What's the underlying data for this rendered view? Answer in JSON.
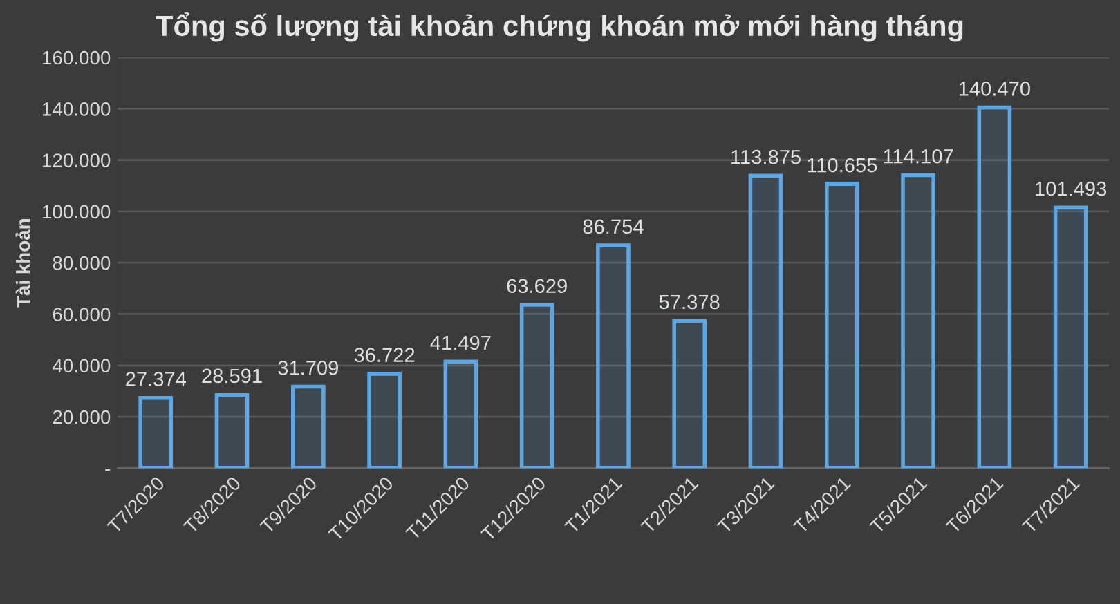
{
  "chart_data": {
    "type": "bar",
    "title": "Tổng số lượng tài khoản chứng khoán mở mới hàng tháng",
    "ylabel": "Tài khoản",
    "categories": [
      "T7/2020",
      "T8/2020",
      "T9/2020",
      "T10/2020",
      "T11/2020",
      "T12/2020",
      "T1/2021",
      "T2/2021",
      "T3/2021",
      "T4/2021",
      "T5/2021",
      "T6/2021",
      "T7/2021"
    ],
    "values": [
      27374,
      28591,
      31709,
      36722,
      41497,
      63629,
      86754,
      57378,
      113875,
      110655,
      114107,
      140470,
      101493
    ],
    "value_labels": [
      "27.374",
      "28.591",
      "31.709",
      "36.722",
      "41.497",
      "63.629",
      "86.754",
      "57.378",
      "113.875",
      "110.655",
      "114.107",
      "140.470",
      "101.493"
    ],
    "color": "#5ba7e6",
    "ylim": [
      0,
      160000
    ],
    "yticks": [
      {
        "value": 0,
        "label": "-"
      },
      {
        "value": 20000,
        "label": "20.000"
      },
      {
        "value": 40000,
        "label": "40.000"
      },
      {
        "value": 60000,
        "label": "60.000"
      },
      {
        "value": 80000,
        "label": "80.000"
      },
      {
        "value": 100000,
        "label": "100.000"
      },
      {
        "value": 120000,
        "label": "120.000"
      },
      {
        "value": 140000,
        "label": "140.000"
      },
      {
        "value": 160000,
        "label": "160.000"
      }
    ],
    "grid": "y"
  }
}
